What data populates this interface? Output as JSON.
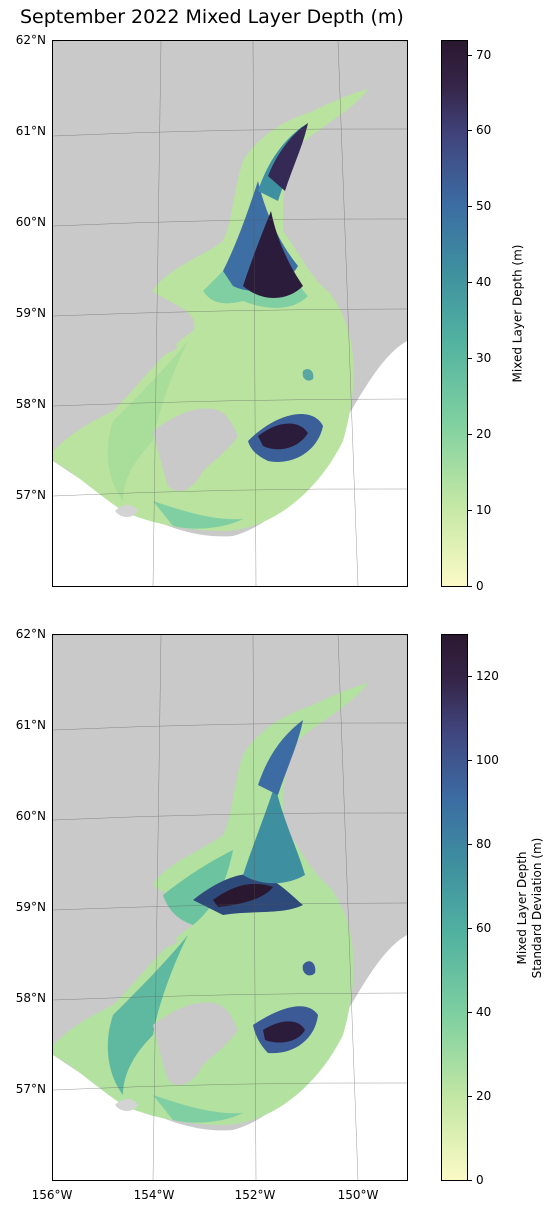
{
  "title": "September 2022 Mixed Layer Depth (m)",
  "lat_labels": [
    "62°N",
    "61°N",
    "60°N",
    "59°N",
    "58°N",
    "57°N"
  ],
  "lon_labels": [
    "156°W",
    "154°W",
    "152°W",
    "150°W"
  ],
  "panels": [
    {
      "colorbar": {
        "label": "Mixed Layer Depth (m)",
        "ticks": [
          "0",
          "10",
          "20",
          "30",
          "40",
          "50",
          "60",
          "70"
        ],
        "max": 72
      }
    },
    {
      "colorbar": {
        "label_line1": "Mixed Layer Depth",
        "label_line2": "Standard Deviation (m)",
        "ticks": [
          "0",
          "20",
          "40",
          "60",
          "80",
          "100",
          "120"
        ],
        "max": 130
      }
    }
  ],
  "colors": {
    "land": "#c9c9c9",
    "shallow": "#d8efb0",
    "mid": "#7fcfa2",
    "deep": "#3a5f99",
    "deepest": "#2c1c3c"
  }
}
